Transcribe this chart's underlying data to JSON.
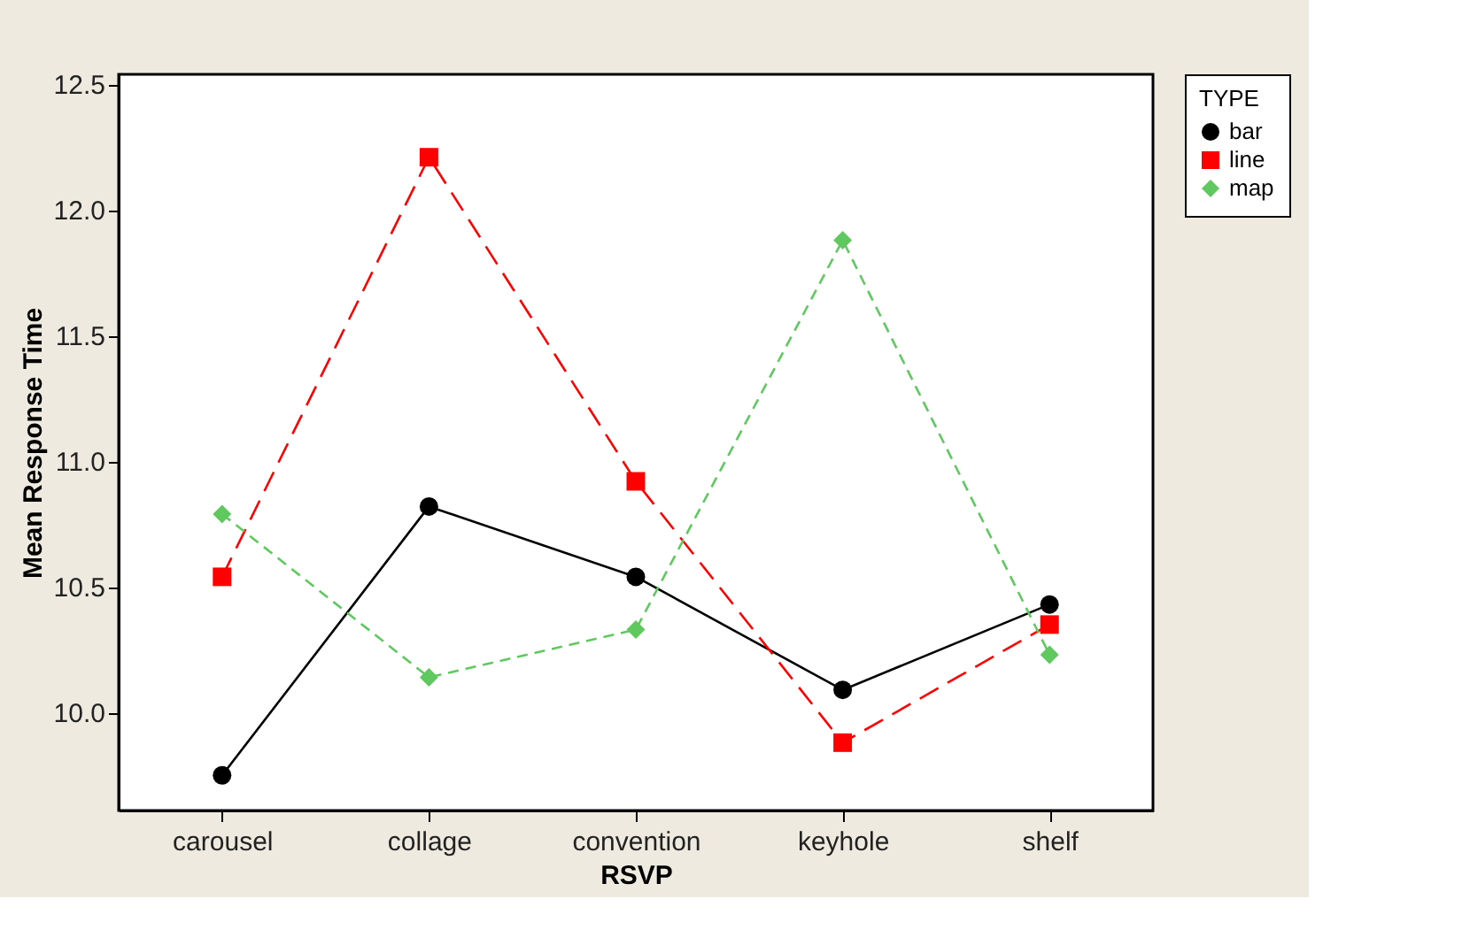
{
  "chart_data": {
    "type": "line",
    "xlabel": "RSVP",
    "ylabel": "Mean Response Time",
    "legend_title": "TYPE",
    "categories": [
      "carousel",
      "collage",
      "convention",
      "keyhole",
      "shelf"
    ],
    "series": [
      {
        "name": "bar",
        "color": "#000000",
        "marker": "circle",
        "line_style": "solid",
        "values": [
          9.75,
          10.82,
          10.54,
          10.09,
          10.43
        ]
      },
      {
        "name": "line",
        "color": "#ff0000",
        "marker": "square",
        "line_style": "dashed",
        "values": [
          10.54,
          12.21,
          10.92,
          9.88,
          10.35
        ]
      },
      {
        "name": "map",
        "color": "#5fc85f",
        "marker": "diamond",
        "line_style": "dotted",
        "values": [
          10.79,
          10.14,
          10.33,
          11.88,
          10.23
        ]
      }
    ],
    "ylim": [
      9.61,
      12.54
    ],
    "yticks": [
      {
        "value": 10,
        "label": "10.0"
      },
      10.5,
      {
        "value": 11,
        "label": "11.0"
      },
      11.5,
      {
        "value": 12,
        "label": "12.0"
      },
      12.5
    ],
    "grid": false,
    "legend": "top right"
  }
}
